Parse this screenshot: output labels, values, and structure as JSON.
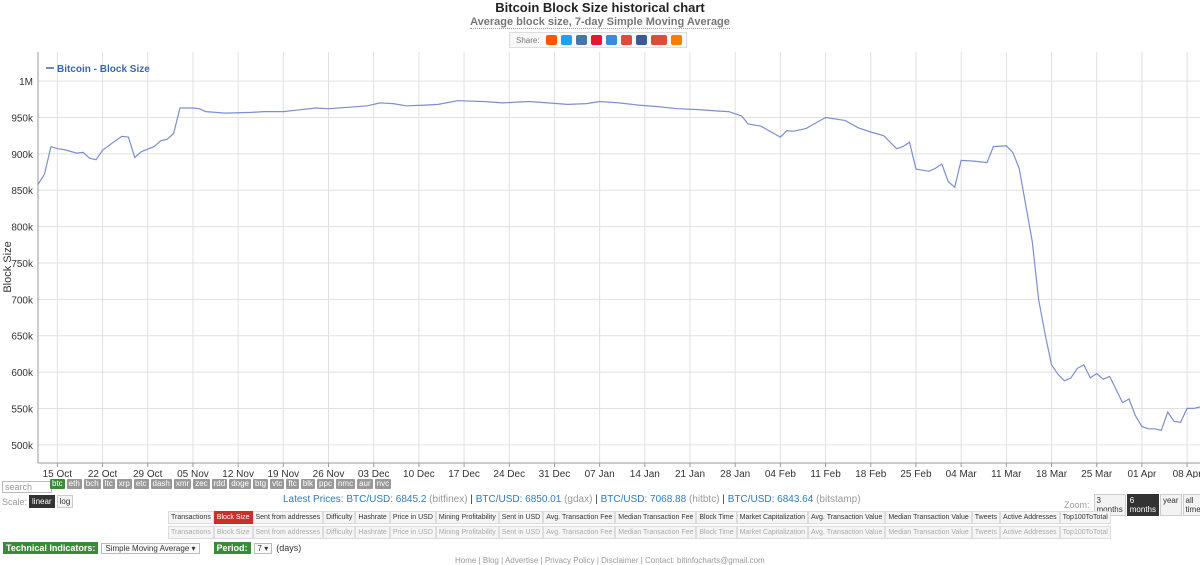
{
  "header": {
    "title": "Bitcoin Block Size historical chart",
    "subtitle": "Average block size, 7-day Simple Moving Average",
    "share_label": "Share:",
    "share_icons": [
      "reddit-icon",
      "twitter-icon",
      "vk-icon",
      "weibo-icon",
      "like-icon",
      "google-icon",
      "facebook-icon",
      "google-plus-one-icon",
      "blogger-icon"
    ]
  },
  "chart_data": {
    "type": "line",
    "title": "Bitcoin Block Size historical chart",
    "subtitle": "Average block size, 7-day Simple Moving Average",
    "ylabel": "Block Size",
    "xlabel": "",
    "ylim": [
      475000,
      1040000
    ],
    "yticks": [
      {
        "value": 500000,
        "label": "500k"
      },
      {
        "value": 550000,
        "label": "550k"
      },
      {
        "value": 600000,
        "label": "600k"
      },
      {
        "value": 650000,
        "label": "650k"
      },
      {
        "value": 700000,
        "label": "700k"
      },
      {
        "value": 750000,
        "label": "750k"
      },
      {
        "value": 800000,
        "label": "800k"
      },
      {
        "value": 850000,
        "label": "850k"
      },
      {
        "value": 900000,
        "label": "900k"
      },
      {
        "value": 950000,
        "label": "950k"
      },
      {
        "value": 1000000,
        "label": "1M"
      }
    ],
    "xlim": [
      "2017-10-12",
      "2018-04-10"
    ],
    "xticks": [
      {
        "date": "2017-10-15",
        "label": "15 Oct"
      },
      {
        "date": "2017-10-22",
        "label": "22 Oct"
      },
      {
        "date": "2017-10-29",
        "label": "29 Oct"
      },
      {
        "date": "2017-11-05",
        "label": "05 Nov"
      },
      {
        "date": "2017-11-12",
        "label": "12 Nov"
      },
      {
        "date": "2017-11-19",
        "label": "19 Nov"
      },
      {
        "date": "2017-11-26",
        "label": "26 Nov"
      },
      {
        "date": "2017-12-03",
        "label": "03 Dec"
      },
      {
        "date": "2017-12-10",
        "label": "10 Dec"
      },
      {
        "date": "2017-12-17",
        "label": "17 Dec"
      },
      {
        "date": "2017-12-24",
        "label": "24 Dec"
      },
      {
        "date": "2017-12-31",
        "label": "31 Dec"
      },
      {
        "date": "2018-01-07",
        "label": "07 Jan"
      },
      {
        "date": "2018-01-14",
        "label": "14 Jan"
      },
      {
        "date": "2018-01-21",
        "label": "21 Jan"
      },
      {
        "date": "2018-01-28",
        "label": "28 Jan"
      },
      {
        "date": "2018-02-04",
        "label": "04 Feb"
      },
      {
        "date": "2018-02-11",
        "label": "11 Feb"
      },
      {
        "date": "2018-02-18",
        "label": "18 Feb"
      },
      {
        "date": "2018-02-25",
        "label": "25 Feb"
      },
      {
        "date": "2018-03-04",
        "label": "04 Mar"
      },
      {
        "date": "2018-03-11",
        "label": "11 Mar"
      },
      {
        "date": "2018-03-18",
        "label": "18 Mar"
      },
      {
        "date": "2018-03-25",
        "label": "25 Mar"
      },
      {
        "date": "2018-04-01",
        "label": "01 Apr"
      },
      {
        "date": "2018-04-08",
        "label": "08 Apr"
      }
    ],
    "grid": true,
    "legend_position": "top-left",
    "series": [
      {
        "name": "Bitcoin - Block Size",
        "color": "#7b8fd0",
        "points": [
          [
            "2017-10-12",
            858000
          ],
          [
            "2017-10-13",
            872000
          ],
          [
            "2017-10-14",
            910000
          ],
          [
            "2017-10-15",
            907000
          ],
          [
            "2017-10-16",
            906000
          ],
          [
            "2017-10-18",
            901000
          ],
          [
            "2017-10-19",
            902000
          ],
          [
            "2017-10-20",
            894000
          ],
          [
            "2017-10-21",
            892000
          ],
          [
            "2017-10-22",
            905000
          ],
          [
            "2017-10-24",
            918000
          ],
          [
            "2017-10-25",
            924000
          ],
          [
            "2017-10-26",
            923000
          ],
          [
            "2017-10-27",
            895000
          ],
          [
            "2017-10-28",
            903000
          ],
          [
            "2017-10-30",
            910000
          ],
          [
            "2017-10-31",
            918000
          ],
          [
            "2017-11-01",
            920000
          ],
          [
            "2017-11-02",
            928000
          ],
          [
            "2017-11-03",
            963000
          ],
          [
            "2017-11-05",
            963000
          ],
          [
            "2017-11-06",
            962000
          ],
          [
            "2017-11-07",
            958000
          ],
          [
            "2017-11-10",
            956000
          ],
          [
            "2017-11-14",
            957000
          ],
          [
            "2017-11-16",
            958000
          ],
          [
            "2017-11-19",
            958000
          ],
          [
            "2017-11-21",
            960000
          ],
          [
            "2017-11-24",
            963000
          ],
          [
            "2017-11-26",
            962000
          ],
          [
            "2017-11-29",
            964000
          ],
          [
            "2017-12-02",
            966000
          ],
          [
            "2017-12-04",
            970000
          ],
          [
            "2017-12-06",
            969000
          ],
          [
            "2017-12-08",
            966000
          ],
          [
            "2017-12-11",
            967000
          ],
          [
            "2017-12-13",
            968000
          ],
          [
            "2017-12-16",
            973000
          ],
          [
            "2017-12-20",
            972000
          ],
          [
            "2017-12-23",
            970000
          ],
          [
            "2017-12-27",
            972000
          ],
          [
            "2017-12-30",
            970000
          ],
          [
            "2018-01-02",
            968000
          ],
          [
            "2018-01-05",
            969000
          ],
          [
            "2018-01-07",
            972000
          ],
          [
            "2018-01-10",
            970000
          ],
          [
            "2018-01-13",
            967000
          ],
          [
            "2018-01-16",
            965000
          ],
          [
            "2018-01-19",
            962000
          ],
          [
            "2018-01-22",
            961000
          ],
          [
            "2018-01-25",
            959000
          ],
          [
            "2018-01-27",
            958000
          ],
          [
            "2018-01-29",
            952000
          ],
          [
            "2018-01-30",
            941000
          ],
          [
            "2018-02-01",
            938000
          ],
          [
            "2018-02-03",
            928000
          ],
          [
            "2018-02-04",
            923000
          ],
          [
            "2018-02-05",
            932000
          ],
          [
            "2018-02-06",
            931000
          ],
          [
            "2018-02-08",
            935000
          ],
          [
            "2018-02-10",
            945000
          ],
          [
            "2018-02-11",
            950000
          ],
          [
            "2018-02-14",
            946000
          ],
          [
            "2018-02-16",
            936000
          ],
          [
            "2018-02-18",
            930000
          ],
          [
            "2018-02-20",
            925000
          ],
          [
            "2018-02-22",
            907000
          ],
          [
            "2018-02-23",
            910000
          ],
          [
            "2018-02-24",
            916000
          ],
          [
            "2018-02-25",
            879000
          ],
          [
            "2018-02-27",
            876000
          ],
          [
            "2018-02-28",
            880000
          ],
          [
            "2018-03-01",
            886000
          ],
          [
            "2018-03-02",
            862000
          ],
          [
            "2018-03-03",
            854000
          ],
          [
            "2018-03-04",
            891000
          ],
          [
            "2018-03-06",
            890000
          ],
          [
            "2018-03-08",
            888000
          ],
          [
            "2018-03-09",
            910000
          ],
          [
            "2018-03-11",
            911000
          ],
          [
            "2018-03-12",
            902000
          ],
          [
            "2018-03-13",
            880000
          ],
          [
            "2018-03-14",
            830000
          ],
          [
            "2018-03-15",
            780000
          ],
          [
            "2018-03-16",
            700000
          ],
          [
            "2018-03-17",
            652000
          ],
          [
            "2018-03-18",
            610000
          ],
          [
            "2018-03-19",
            597000
          ],
          [
            "2018-03-20",
            588000
          ],
          [
            "2018-03-21",
            592000
          ],
          [
            "2018-03-22",
            605000
          ],
          [
            "2018-03-23",
            610000
          ],
          [
            "2018-03-24",
            592000
          ],
          [
            "2018-03-25",
            598000
          ],
          [
            "2018-03-26",
            590000
          ],
          [
            "2018-03-27",
            594000
          ],
          [
            "2018-03-28",
            576000
          ],
          [
            "2018-03-29",
            558000
          ],
          [
            "2018-03-30",
            563000
          ],
          [
            "2018-03-31",
            540000
          ],
          [
            "2018-04-01",
            525000
          ],
          [
            "2018-04-02",
            522000
          ],
          [
            "2018-04-03",
            522000
          ],
          [
            "2018-04-04",
            520000
          ],
          [
            "2018-04-05",
            545000
          ],
          [
            "2018-04-06",
            532000
          ],
          [
            "2018-04-07",
            531000
          ],
          [
            "2018-04-08",
            550000
          ],
          [
            "2018-04-09",
            550000
          ],
          [
            "2018-04-10",
            552000
          ]
        ]
      }
    ]
  },
  "controls": {
    "search_placeholder": "search",
    "coins": [
      {
        "label": "btc",
        "active": true
      },
      {
        "label": "eth"
      },
      {
        "label": "bch"
      },
      {
        "label": "ltc"
      },
      {
        "label": "xrp"
      },
      {
        "label": "etc"
      },
      {
        "label": "dash"
      },
      {
        "label": "xmr"
      },
      {
        "label": "zec"
      },
      {
        "label": "rdd"
      },
      {
        "label": "doge"
      },
      {
        "label": "btg"
      },
      {
        "label": "vtc"
      },
      {
        "label": "ftc"
      },
      {
        "label": "blk"
      },
      {
        "label": "ppc"
      },
      {
        "label": "nmc"
      },
      {
        "label": "aur"
      },
      {
        "label": "nvc"
      }
    ],
    "scale_label": "Scale:",
    "scale_options": [
      {
        "label": "linear",
        "active": true
      },
      {
        "label": "log"
      }
    ],
    "zoom_label": "Zoom:",
    "zoom_options": [
      {
        "label": "3 months"
      },
      {
        "label": "6 months",
        "active": true
      },
      {
        "label": "year"
      },
      {
        "label": "all time"
      }
    ]
  },
  "prices": {
    "label": "Latest Prices:",
    "items": [
      {
        "pair": "BTC/USD:",
        "value": "6845.2",
        "source": "(bitfinex)"
      },
      {
        "pair": "BTC/USD:",
        "value": "6850.01",
        "source": "(gdax)"
      },
      {
        "pair": "BTC/USD:",
        "value": "7068.88",
        "source": "(hitbtc)"
      },
      {
        "pair": "BTC/USD:",
        "value": "6843.64",
        "source": "(bitstamp)"
      }
    ]
  },
  "metrics_row1": [
    {
      "label": "Transactions"
    },
    {
      "label": "Block Size",
      "active": true
    },
    {
      "label": "Sent from addresses"
    },
    {
      "label": "Difficulty"
    },
    {
      "label": "Hashrate"
    },
    {
      "label": "Price in USD"
    },
    {
      "label": "Mining Profitability"
    },
    {
      "label": "Sent in USD"
    },
    {
      "label": "Avg. Transaction Fee"
    },
    {
      "label": "Median Transaction Fee"
    },
    {
      "label": "Block Time"
    },
    {
      "label": "Market Capitalization"
    },
    {
      "label": "Avg. Transaction Value"
    },
    {
      "label": "Median Transaction Value"
    },
    {
      "label": "Tweets"
    },
    {
      "label": "Active Addresses"
    },
    {
      "label": "Top100ToTotal"
    }
  ],
  "metrics_row2": [
    {
      "label": "Transactions"
    },
    {
      "label": "Block Size"
    },
    {
      "label": "Sent from addresses"
    },
    {
      "label": "Difficulty"
    },
    {
      "label": "Hashrate"
    },
    {
      "label": "Price in USD"
    },
    {
      "label": "Mining Profitability"
    },
    {
      "label": "Sent in USD"
    },
    {
      "label": "Avg. Transaction Fee"
    },
    {
      "label": "Median Transaction Fee"
    },
    {
      "label": "Block Time"
    },
    {
      "label": "Market Capitalization"
    },
    {
      "label": "Avg. Transaction Value"
    },
    {
      "label": "Median Transaction Value"
    },
    {
      "label": "Tweets"
    },
    {
      "label": "Active Addresses"
    },
    {
      "label": "Top100ToTotal"
    }
  ],
  "indicators": {
    "label": "Technical Indicators:",
    "selected": "Simple Moving Average",
    "period_label": "Period:",
    "period_value": "7",
    "period_unit": "(days)"
  },
  "footer": {
    "text": "Home | Blog | Advertise | Privacy Policy | Disclaimer | Contact: bitinfocharts@gmail.com"
  }
}
